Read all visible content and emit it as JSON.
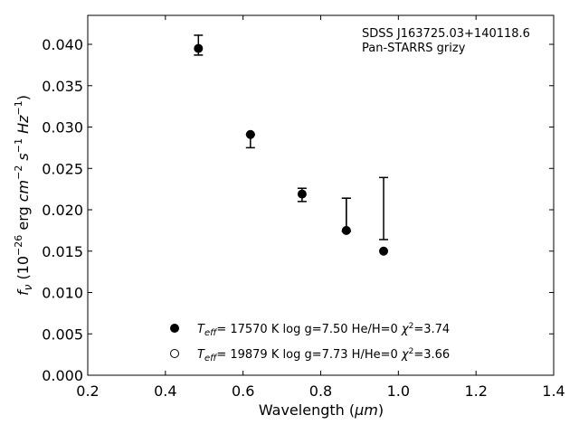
{
  "chart_data": {
    "type": "scatter",
    "xlabel": "Wavelength (μm)",
    "ylabel": "f_ν (10^-26 erg cm^-2 s^-1 Hz^-1)",
    "xlim": [
      0.2,
      1.4
    ],
    "ylim": [
      0.0,
      0.0435
    ],
    "x_ticks": [
      0.2,
      0.4,
      0.6,
      0.8,
      1.0,
      1.2,
      1.4
    ],
    "x_tick_labels": [
      "0.2",
      "0.4",
      "0.6",
      "0.8",
      "1.0",
      "1.2",
      "1.4"
    ],
    "y_ticks": [
      0.0,
      0.005,
      0.01,
      0.015,
      0.02,
      0.025,
      0.03,
      0.035,
      0.04
    ],
    "y_tick_labels": [
      "0.000",
      "0.005",
      "0.010",
      "0.015",
      "0.020",
      "0.025",
      "0.030",
      "0.035",
      "0.040"
    ],
    "grid": false,
    "annotations": [
      "SDSS J163725.03+140118.6",
      "Pan-STARRS grizy"
    ],
    "observed": {
      "x": [
        0.485,
        0.619,
        0.752,
        0.866,
        0.866,
        0.962
      ],
      "y": [
        0.0399,
        0.0285,
        0.0218,
        0.0174,
        0.0174,
        0.0201
      ],
      "err_low": [
        0.0012,
        0.001,
        0.0008,
        0.0,
        0.0,
        0.0037
      ],
      "err_high": [
        0.0012,
        0.0006,
        0.0008,
        0.004,
        0.004,
        0.0038
      ]
    },
    "series": [
      {
        "marker": "filled-circle",
        "label_parts": {
          "t": "T",
          "sub": "eff",
          "rest": "= 17570 K  log g=7.50  He/H=0  ",
          "chi": "χ",
          "sup": "2",
          "val": "=3.74"
        },
        "x": [
          0.485,
          0.619,
          0.752,
          0.866,
          0.962
        ],
        "y": [
          0.0395,
          0.0291,
          0.0219,
          0.0175,
          0.015
        ]
      },
      {
        "marker": "open-circle",
        "label_parts": {
          "t": "T",
          "sub": "eff",
          "rest": "= 19879 K  log g=7.73  H/He=0  ",
          "chi": "χ",
          "sup": "2",
          "val": "=3.66"
        },
        "x": [],
        "y": []
      }
    ],
    "legend_placement": "lower-center",
    "colors": {
      "marker": "#000000",
      "axes": "#000000"
    }
  }
}
